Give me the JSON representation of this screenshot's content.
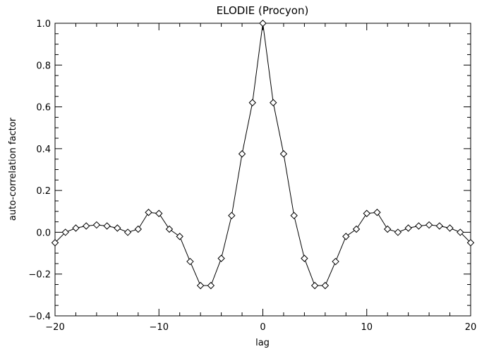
{
  "chart_data": {
    "type": "line",
    "title": "ELODIE (Procyon)",
    "xlabel": "lag",
    "ylabel": "auto-correlation factor",
    "xlim": [
      -20,
      20
    ],
    "ylim": [
      -0.4,
      1.0
    ],
    "grid": false,
    "marker": "diamond",
    "x_ticks": [
      -20,
      -10,
      0,
      10,
      20
    ],
    "y_ticks": [
      -0.4,
      -0.2,
      0.0,
      0.2,
      0.4,
      0.6,
      0.8,
      1.0
    ],
    "x_tick_labels": [
      "−20",
      "−10",
      "0",
      "10",
      "20"
    ],
    "y_tick_labels": [
      "−0.4",
      "−0.2",
      "0.0",
      "0.2",
      "0.4",
      "0.6",
      "0.8",
      "1.0"
    ],
    "series": [
      {
        "x": [
          -20,
          -19,
          -18,
          -17,
          -16,
          -15,
          -14,
          -13,
          -12,
          -11,
          -10,
          -9,
          -8,
          -7,
          -6,
          -5,
          -4,
          -3,
          -2,
          -1,
          0,
          1,
          2,
          3,
          4,
          5,
          6,
          7,
          8,
          9,
          10,
          11,
          12,
          13,
          14,
          15,
          16,
          17,
          18,
          19,
          20
        ],
        "y": [
          -0.05,
          0.0,
          0.02,
          0.03,
          0.035,
          0.03,
          0.02,
          0.0,
          0.015,
          0.095,
          0.09,
          0.015,
          -0.02,
          -0.14,
          -0.255,
          -0.255,
          -0.125,
          0.08,
          0.375,
          0.62,
          1.0,
          0.62,
          0.375,
          0.08,
          -0.125,
          -0.255,
          -0.255,
          -0.14,
          -0.02,
          0.015,
          0.09,
          0.095,
          0.015,
          0.0,
          0.02,
          0.03,
          0.035,
          0.03,
          0.02,
          0.0,
          -0.05
        ]
      }
    ]
  }
}
